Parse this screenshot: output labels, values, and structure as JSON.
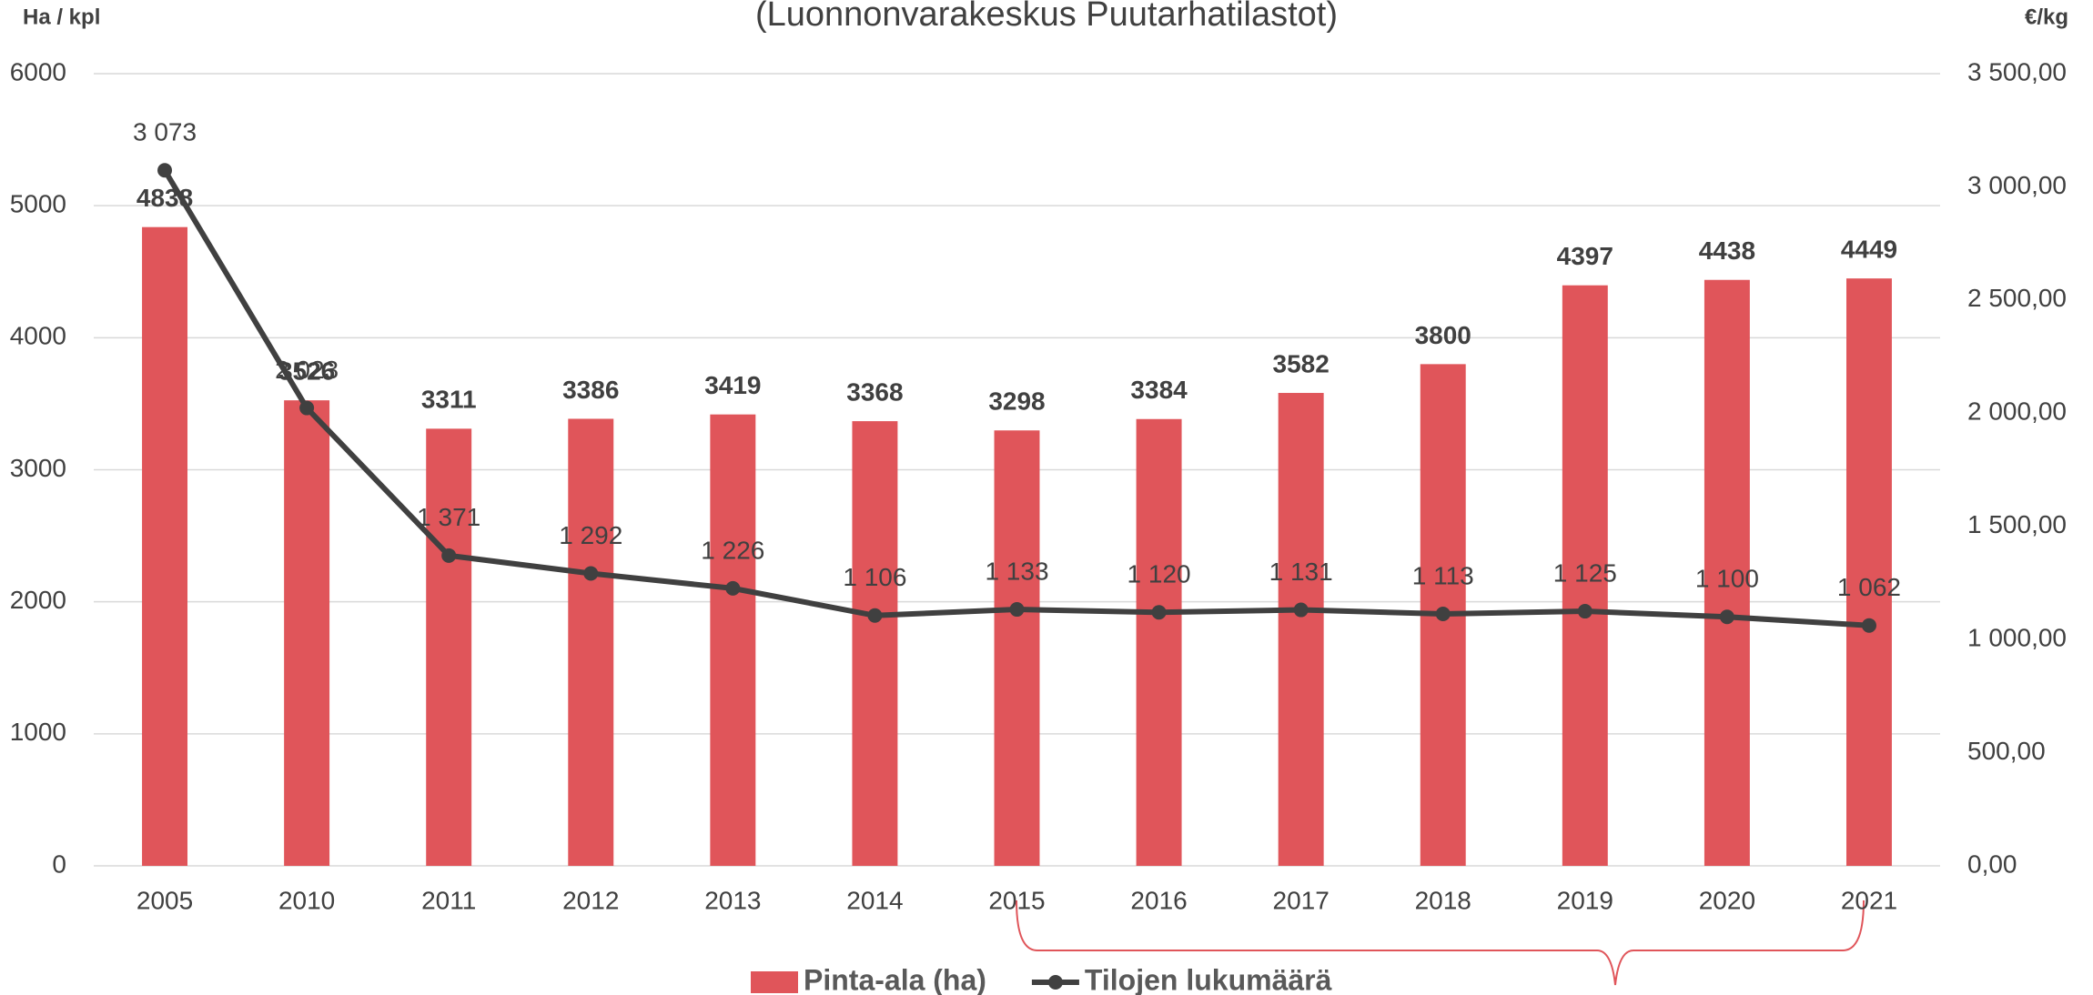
{
  "chart_data": {
    "type": "bar_line",
    "title": "(Luonnonvarakeskus Puutarhatilastot)",
    "y_label": "Ha / kpl",
    "y2_label": "€/kg",
    "categories": [
      "2005",
      "2010",
      "2011",
      "2012",
      "2013",
      "2014",
      "2015",
      "2016",
      "2017",
      "2018",
      "2019",
      "2020",
      "2021"
    ],
    "series": [
      {
        "name": "Pinta-ala (ha)",
        "type": "bar",
        "color": "#e0555a",
        "axis": "y",
        "values": [
          4838,
          3526,
          3311,
          3386,
          3419,
          3368,
          3298,
          3384,
          3582,
          3800,
          4397,
          4438,
          4449
        ]
      },
      {
        "name": "Tilojen lukumäärä",
        "type": "line",
        "color": "#404040",
        "axis": "y2",
        "values": [
          3073,
          2023,
          1371,
          1292,
          1226,
          1106,
          1133,
          1120,
          1131,
          1113,
          1125,
          1100,
          1062
        ],
        "value_labels": [
          "3 073",
          "2 023",
          "1 371",
          "1 292",
          "1 226",
          "1 106",
          "1 133",
          "1 120",
          "1 131",
          "1 113",
          "1 125",
          "1 100",
          "1 062"
        ]
      }
    ],
    "ylim": [
      0,
      6000
    ],
    "yticks": [
      0,
      1000,
      2000,
      3000,
      4000,
      5000,
      6000
    ],
    "y2lim": [
      0,
      3500
    ],
    "y2ticks": [
      {
        "value": 0,
        "label": "0,00"
      },
      {
        "value": 500,
        "label": "500,00"
      },
      {
        "value": 1000,
        "label": "1 000,00"
      },
      {
        "value": 1500,
        "label": "1 500,00"
      },
      {
        "value": 2000,
        "label": "2 000,00"
      },
      {
        "value": 2500,
        "label": "2 500,00"
      },
      {
        "value": 3000,
        "label": "3 000,00"
      },
      {
        "value": 3500,
        "label": "3 500,00"
      }
    ],
    "grid": true,
    "legend": "bottom"
  }
}
